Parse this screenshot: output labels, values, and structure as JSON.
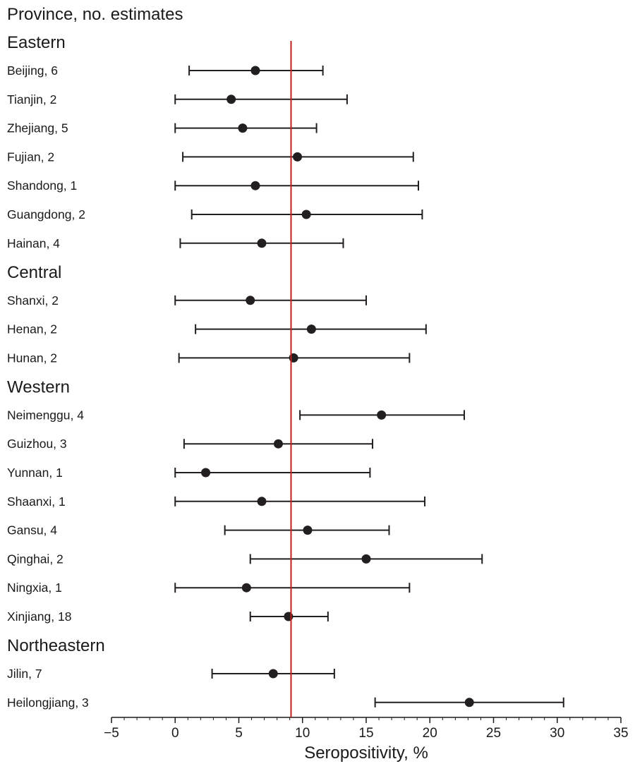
{
  "chart_data": {
    "type": "forest",
    "title": "Province, no. estimates",
    "xlabel": "Seropositivity, %",
    "xlim": [
      -5,
      35
    ],
    "xticks": [
      -5,
      0,
      5,
      10,
      15,
      20,
      25,
      30,
      35
    ],
    "xtick_labels": [
      "−5",
      "0",
      "5",
      "10",
      "15",
      "20",
      "25",
      "30",
      "35"
    ],
    "reference_line": {
      "x": 9.1,
      "color": "#c0201f"
    },
    "marker_color": "#231f20",
    "groups": [
      {
        "region": "Eastern",
        "rows": [
          {
            "label": "Beijing, 6",
            "estimate": 6.3,
            "lower": 1.1,
            "upper": 11.6
          },
          {
            "label": "Tianjin, 2",
            "estimate": 4.4,
            "lower": 0.0,
            "upper": 13.5
          },
          {
            "label": "Zhejiang, 5",
            "estimate": 5.3,
            "lower": 0.0,
            "upper": 11.1
          },
          {
            "label": "Fujian, 2",
            "estimate": 9.6,
            "lower": 0.6,
            "upper": 18.7
          },
          {
            "label": "Shandong, 1",
            "estimate": 6.3,
            "lower": 0.0,
            "upper": 19.1
          },
          {
            "label": "Guangdong, 2",
            "estimate": 10.3,
            "lower": 1.3,
            "upper": 19.4
          },
          {
            "label": "Hainan, 4",
            "estimate": 6.8,
            "lower": 0.4,
            "upper": 13.2
          }
        ]
      },
      {
        "region": "Central",
        "rows": [
          {
            "label": "Shanxi, 2",
            "estimate": 5.9,
            "lower": 0.0,
            "upper": 15.0
          },
          {
            "label": "Henan, 2",
            "estimate": 10.7,
            "lower": 1.6,
            "upper": 19.7
          },
          {
            "label": "Hunan, 2",
            "estimate": 9.3,
            "lower": 0.3,
            "upper": 18.4
          }
        ]
      },
      {
        "region": "Western",
        "rows": [
          {
            "label": "Neimenggu, 4",
            "estimate": 16.2,
            "lower": 9.8,
            "upper": 22.7
          },
          {
            "label": "Guizhou, 3",
            "estimate": 8.1,
            "lower": 0.7,
            "upper": 15.5
          },
          {
            "label": "Yunnan, 1",
            "estimate": 2.4,
            "lower": 0.0,
            "upper": 15.3
          },
          {
            "label": "Shaanxi, 1",
            "estimate": 6.8,
            "lower": 0.0,
            "upper": 19.6
          },
          {
            "label": "Gansu, 4",
            "estimate": 10.4,
            "lower": 3.9,
            "upper": 16.8
          },
          {
            "label": "Qinghai, 2",
            "estimate": 15.0,
            "lower": 5.9,
            "upper": 24.1
          },
          {
            "label": "Ningxia, 1",
            "estimate": 5.6,
            "lower": 0.0,
            "upper": 18.4
          },
          {
            "label": "Xinjiang, 18",
            "estimate": 8.9,
            "lower": 5.9,
            "upper": 12.0
          }
        ]
      },
      {
        "region": "Northeastern",
        "rows": [
          {
            "label": "Jilin, 7",
            "estimate": 7.7,
            "lower": 2.9,
            "upper": 12.5
          },
          {
            "label": "Heilongjiang, 3",
            "estimate": 23.1,
            "lower": 15.7,
            "upper": 30.5
          }
        ]
      }
    ]
  }
}
